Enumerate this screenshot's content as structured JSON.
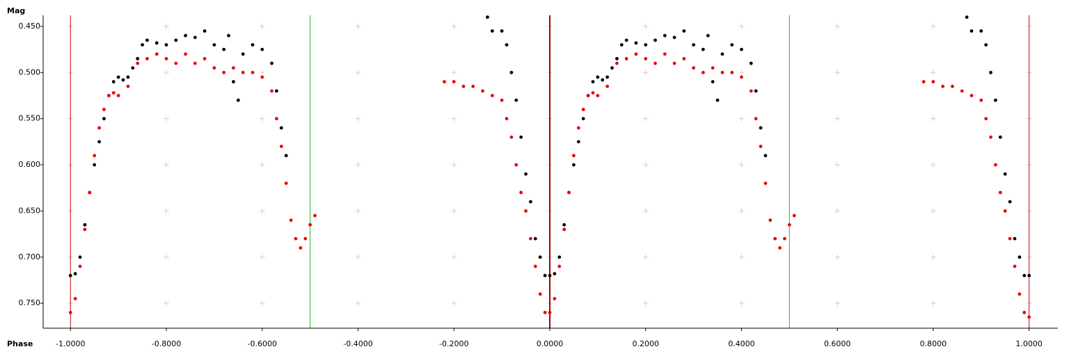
{
  "chart_data": {
    "type": "scatter",
    "y_axis_title": "Mag",
    "x_axis_title": "Phase",
    "xlim": [
      -1.057,
      1.06
    ],
    "ylim": [
      0.777,
      0.438
    ],
    "xticks": [
      {
        "value": -1.0,
        "label": "-1.0000"
      },
      {
        "value": -0.8,
        "label": "-0.8000"
      },
      {
        "value": -0.6,
        "label": "-0.6000"
      },
      {
        "value": -0.4,
        "label": "-0.4000"
      },
      {
        "value": -0.2,
        "label": "-0.2000"
      },
      {
        "value": 0,
        "label": "0.0000"
      },
      {
        "value": 0.2,
        "label": "0.2000"
      },
      {
        "value": 0.4,
        "label": "0.4000"
      },
      {
        "value": 0.6,
        "label": "0.6000"
      },
      {
        "value": 0.8,
        "label": "0.8000"
      },
      {
        "value": 1.0,
        "label": "1.0000"
      }
    ],
    "yticks": [
      {
        "value": 0.45,
        "label": "0.450"
      },
      {
        "value": 0.5,
        "label": "0.500"
      },
      {
        "value": 0.55,
        "label": "0.550"
      },
      {
        "value": 0.6,
        "label": "0.600"
      },
      {
        "value": 0.65,
        "label": "0.650"
      },
      {
        "value": 0.7,
        "label": "0.700"
      },
      {
        "value": 0.75,
        "label": "0.750"
      }
    ],
    "grid": true,
    "reference_lines": [
      {
        "x": -1.0,
        "color": "#c00000"
      },
      {
        "x": -0.5,
        "color": "#22bb22"
      },
      {
        "x": 0,
        "color": "#a00000"
      },
      {
        "x": 0.5,
        "color": "#22bb22"
      },
      {
        "x": 1.0,
        "color": "#c00000"
      }
    ],
    "series": [
      {
        "color": "#000000",
        "x": [
          -1.0,
          -0.99,
          -0.98,
          -0.97,
          -0.96,
          -0.95,
          -0.94,
          -0.93,
          -0.92,
          -0.91,
          -0.9,
          -0.89,
          -0.88,
          -0.87,
          -0.86,
          -0.85,
          -0.84,
          -0.82,
          -0.8,
          -0.78,
          -0.76,
          -0.74,
          -0.72,
          -0.7,
          -0.68,
          -0.67,
          -0.66,
          -0.65,
          -0.64,
          -0.62,
          -0.6,
          -0.58,
          -0.57,
          -0.56,
          -0.55,
          -0.13,
          -0.12,
          -0.1,
          -0.09,
          -0.08,
          -0.07,
          -0.06,
          -0.05,
          -0.04,
          -0.03,
          -0.02,
          -0.01,
          0.0,
          0.01,
          0.02,
          0.03,
          0.04,
          0.05,
          0.06,
          0.07,
          0.08,
          0.09,
          0.1,
          0.11,
          0.12,
          0.13,
          0.14,
          0.15,
          0.16,
          0.18,
          0.2,
          0.22,
          0.24,
          0.26,
          0.28,
          0.3,
          0.32,
          0.33,
          0.34,
          0.35,
          0.36,
          0.38,
          0.4,
          0.42,
          0.43,
          0.44,
          0.45,
          0.87,
          0.88,
          0.9,
          0.91,
          0.92,
          0.93,
          0.94,
          0.95,
          0.96,
          0.97,
          0.98,
          0.99,
          1.0
        ],
        "values": [
          0.72,
          0.718,
          0.7,
          0.665,
          0.63,
          0.6,
          0.575,
          0.55,
          0.525,
          0.51,
          0.505,
          0.508,
          0.505,
          0.495,
          0.485,
          0.47,
          0.465,
          0.468,
          0.47,
          0.465,
          0.46,
          0.462,
          0.455,
          0.47,
          0.475,
          0.46,
          0.51,
          0.53,
          0.48,
          0.47,
          0.475,
          0.49,
          0.52,
          0.56,
          0.59,
          0.44,
          0.455,
          0.455,
          0.47,
          0.5,
          0.53,
          0.57,
          0.61,
          0.64,
          0.68,
          0.7,
          0.72,
          0.72,
          0.718,
          0.7,
          0.665,
          0.63,
          0.6,
          0.575,
          0.55,
          0.525,
          0.51,
          0.505,
          0.508,
          0.505,
          0.495,
          0.485,
          0.47,
          0.465,
          0.468,
          0.47,
          0.465,
          0.46,
          0.462,
          0.455,
          0.47,
          0.475,
          0.46,
          0.51,
          0.53,
          0.48,
          0.47,
          0.475,
          0.49,
          0.52,
          0.56,
          0.59,
          0.44,
          0.455,
          0.455,
          0.47,
          0.5,
          0.53,
          0.57,
          0.61,
          0.64,
          0.68,
          0.7,
          0.72,
          0.72
        ]
      },
      {
        "color": "#ee0000",
        "x": [
          -1.0,
          -0.99,
          -0.98,
          -0.97,
          -0.96,
          -0.95,
          -0.94,
          -0.93,
          -0.92,
          -0.91,
          -0.9,
          -0.88,
          -0.86,
          -0.84,
          -0.82,
          -0.8,
          -0.78,
          -0.76,
          -0.74,
          -0.72,
          -0.7,
          -0.68,
          -0.66,
          -0.64,
          -0.62,
          -0.6,
          -0.58,
          -0.57,
          -0.56,
          -0.55,
          -0.54,
          -0.53,
          -0.52,
          -0.51,
          -0.5,
          -0.49,
          -0.22,
          -0.2,
          -0.18,
          -0.16,
          -0.14,
          -0.12,
          -0.1,
          -0.09,
          -0.08,
          -0.07,
          -0.06,
          -0.05,
          -0.04,
          -0.03,
          -0.02,
          -0.01,
          0.0,
          0.01,
          0.02,
          0.03,
          0.04,
          0.05,
          0.06,
          0.07,
          0.08,
          0.09,
          0.1,
          0.12,
          0.14,
          0.16,
          0.18,
          0.2,
          0.22,
          0.24,
          0.26,
          0.28,
          0.3,
          0.32,
          0.34,
          0.36,
          0.38,
          0.4,
          0.42,
          0.43,
          0.44,
          0.45,
          0.46,
          0.47,
          0.48,
          0.49,
          0.5,
          0.51,
          0.78,
          0.8,
          0.82,
          0.84,
          0.86,
          0.88,
          0.9,
          0.91,
          0.92,
          0.93,
          0.94,
          0.95,
          0.96,
          0.97,
          0.98,
          0.99,
          1.0
        ],
        "values": [
          0.76,
          0.745,
          0.71,
          0.67,
          0.63,
          0.59,
          0.56,
          0.54,
          0.525,
          0.522,
          0.525,
          0.515,
          0.49,
          0.485,
          0.48,
          0.485,
          0.49,
          0.48,
          0.49,
          0.485,
          0.495,
          0.5,
          0.495,
          0.5,
          0.5,
          0.505,
          0.52,
          0.55,
          0.58,
          0.62,
          0.66,
          0.68,
          0.69,
          0.68,
          0.665,
          0.655,
          0.51,
          0.51,
          0.515,
          0.515,
          0.52,
          0.525,
          0.53,
          0.55,
          0.57,
          0.6,
          0.63,
          0.65,
          0.68,
          0.71,
          0.74,
          0.76,
          0.76,
          0.745,
          0.71,
          0.67,
          0.63,
          0.59,
          0.56,
          0.54,
          0.525,
          0.522,
          0.525,
          0.515,
          0.49,
          0.485,
          0.48,
          0.485,
          0.49,
          0.48,
          0.49,
          0.485,
          0.495,
          0.5,
          0.495,
          0.5,
          0.5,
          0.505,
          0.52,
          0.55,
          0.58,
          0.62,
          0.66,
          0.68,
          0.69,
          0.68,
          0.665,
          0.655,
          0.51,
          0.51,
          0.515,
          0.515,
          0.52,
          0.525,
          0.53,
          0.55,
          0.57,
          0.6,
          0.63,
          0.65,
          0.68,
          0.71,
          0.74,
          0.76,
          0.765
        ]
      }
    ]
  }
}
